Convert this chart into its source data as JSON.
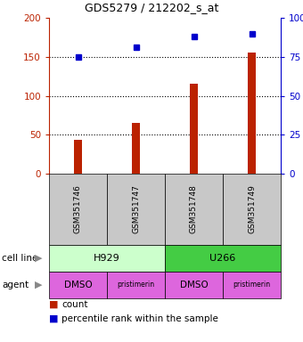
{
  "title": "GDS5279 / 212202_s_at",
  "samples": [
    "GSM351746",
    "GSM351747",
    "GSM351748",
    "GSM351749"
  ],
  "counts": [
    44,
    65,
    116,
    156
  ],
  "percentile_plot_vals": [
    150,
    162,
    176,
    180
  ],
  "ylim": [
    0,
    200
  ],
  "yticks_left": [
    0,
    50,
    100,
    150,
    200
  ],
  "ytick_labels_right": [
    "0",
    "25",
    "50",
    "75",
    "100%"
  ],
  "dotted_lines": [
    50,
    100,
    150
  ],
  "bar_color": "#BB2200",
  "dot_color": "#0000CC",
  "cell_line_data": [
    {
      "label": "H929",
      "color": "#CCFFCC",
      "span": [
        0,
        2
      ]
    },
    {
      "label": "U266",
      "color": "#44CC44",
      "span": [
        2,
        4
      ]
    }
  ],
  "agent_labels": [
    "DMSO",
    "pristimerin",
    "DMSO",
    "pristimerin"
  ],
  "agent_color": "#DD66DD",
  "sample_box_color": "#C8C8C8",
  "background_color": "#FFFFFF"
}
